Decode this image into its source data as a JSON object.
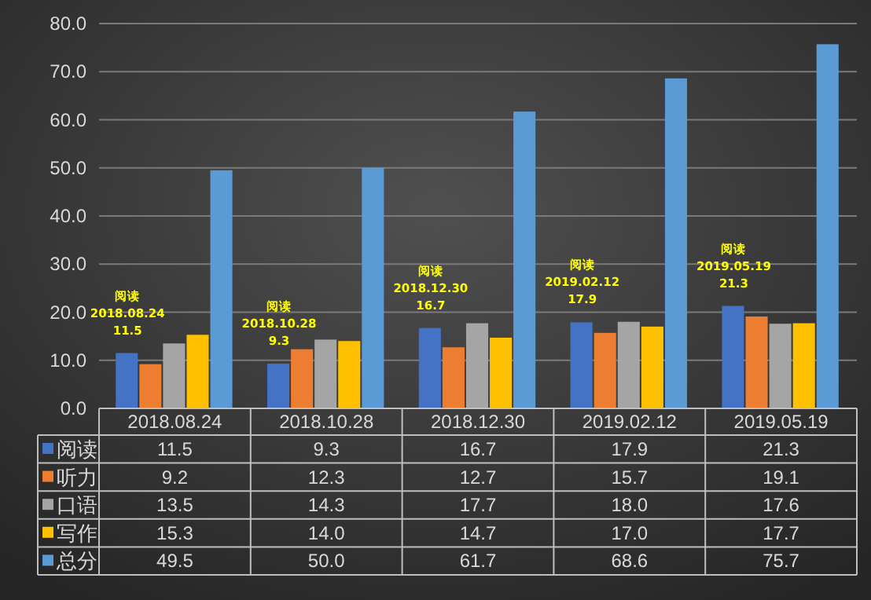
{
  "chart_data": {
    "type": "bar",
    "categories": [
      "2018.08.24",
      "2018.10.28",
      "2018.12.30",
      "2019.02.12",
      "2019.05.19"
    ],
    "series": [
      {
        "name": "阅读",
        "color": "#4472c4",
        "values": [
          11.5,
          9.3,
          16.7,
          17.9,
          21.3
        ],
        "value_labels": [
          "11.5",
          "9.3",
          "16.7",
          "17.9",
          "21.3"
        ]
      },
      {
        "name": "听力",
        "color": "#ed7d31",
        "values": [
          9.2,
          12.3,
          12.7,
          15.7,
          19.1
        ],
        "value_labels": [
          "9.2",
          "12.3",
          "12.7",
          "15.7",
          "19.1"
        ]
      },
      {
        "name": "口语",
        "color": "#a5a5a5",
        "values": [
          13.5,
          14.3,
          17.7,
          18.0,
          17.6
        ],
        "value_labels": [
          "13.5",
          "14.3",
          "17.7",
          "18.0",
          "17.6"
        ]
      },
      {
        "name": "写作",
        "color": "#ffc000",
        "values": [
          15.3,
          14.0,
          14.7,
          17.0,
          17.7
        ],
        "value_labels": [
          "15.3",
          "14.0",
          "14.7",
          "17.0",
          "17.7"
        ]
      },
      {
        "name": "总分",
        "color": "#5b9bd5",
        "values": [
          49.5,
          50.0,
          61.7,
          68.6,
          75.7
        ],
        "value_labels": [
          "49.5",
          "50.0",
          "61.7",
          "68.6",
          "75.7"
        ]
      }
    ],
    "ylim": [
      0,
      80
    ],
    "yticks": [
      {
        "value": 0,
        "label": "0.0"
      },
      {
        "value": 10,
        "label": "10.0"
      },
      {
        "value": 20,
        "label": "20.0"
      },
      {
        "value": 30,
        "label": "30.0"
      },
      {
        "value": 40,
        "label": "40.0"
      },
      {
        "value": 50,
        "label": "50.0"
      },
      {
        "value": 60,
        "label": "60.0"
      },
      {
        "value": 70,
        "label": "70.0"
      },
      {
        "value": 80,
        "label": "80.0"
      }
    ],
    "grid": "y",
    "legend": "bottom",
    "annotations": [
      "阅读\n2018.08.24\n11.5",
      "阅读\n2018.10.28\n9.3",
      "阅读\n2018.12.30\n16.7",
      "阅读\n2019.02.12\n17.9",
      "阅读\n2019.05.19\n21.3"
    ]
  }
}
